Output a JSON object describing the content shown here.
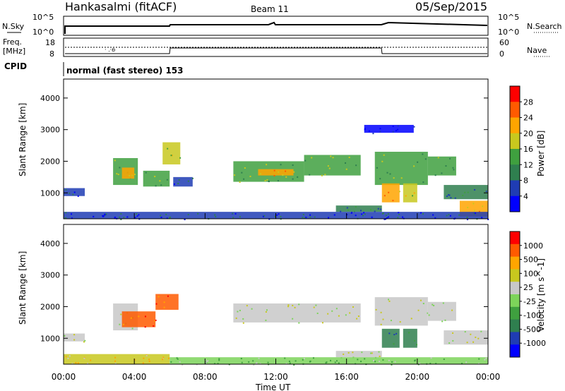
{
  "header": {
    "station": "Hankasalmi (fitACF)",
    "beam": "Beam 11",
    "date": "05/Sep/2015"
  },
  "nsky_panel": {
    "left_label": "N.Sky",
    "right_label": "N.Search",
    "left_ticks": [
      "10^5",
      "10^0"
    ],
    "right_ticks": [
      "10^5",
      "10^0"
    ]
  },
  "freq_panel": {
    "left_label_line1": "Freq.",
    "left_label_line2": "[MHz]",
    "right_label": "Nave",
    "left_ticks": [
      "18",
      "8"
    ],
    "right_ticks": [
      "60",
      "0"
    ]
  },
  "cpid": {
    "label": "CPID",
    "text": "normal (fast stereo) 153"
  },
  "colors": {
    "power": [
      "#0000ff",
      "#1f3cb4",
      "#2f7f4f",
      "#3fa03f",
      "#c8c81e",
      "#ffa500",
      "#ff5a00",
      "#ff0000"
    ],
    "velocity": [
      "#0000ff",
      "#1f3cb4",
      "#2f7f4f",
      "#3fa03f",
      "#7dd45a",
      "#c8c8c8",
      "#c8c81e",
      "#ffa500",
      "#ff5a00",
      "#ff0000"
    ]
  },
  "chart_data": [
    {
      "type": "heatmap",
      "name": "Power",
      "xlabel": "",
      "ylabel": "Slant Range [km]",
      "colorbar_label": "Power [dB]",
      "colorbar_ticks": [
        "28",
        "24",
        "20",
        "16",
        "12",
        "8",
        "4"
      ],
      "y_ticks": [
        "4000",
        "3000",
        "2000",
        "1000"
      ],
      "xlim": [
        0,
        24
      ],
      "ylim": [
        180,
        4600
      ],
      "echo_regions": [
        {
          "t0": 0.0,
          "t1": 1.2,
          "r0": 900,
          "r1": 1150,
          "level": 1
        },
        {
          "t0": 2.8,
          "t1": 4.2,
          "r0": 1250,
          "r1": 2100,
          "level": 3
        },
        {
          "t0": 3.3,
          "t1": 4.0,
          "r0": 1450,
          "r1": 1800,
          "level": 5
        },
        {
          "t0": 4.5,
          "t1": 6.0,
          "r0": 1200,
          "r1": 1700,
          "level": 3
        },
        {
          "t0": 5.6,
          "t1": 6.6,
          "r0": 1900,
          "r1": 2600,
          "level": 4
        },
        {
          "t0": 6.2,
          "t1": 7.3,
          "r0": 1200,
          "r1": 1500,
          "level": 1
        },
        {
          "t0": 9.6,
          "t1": 13.6,
          "r0": 1350,
          "r1": 2000,
          "level": 3
        },
        {
          "t0": 13.6,
          "t1": 16.8,
          "r0": 1550,
          "r1": 2200,
          "level": 3
        },
        {
          "t0": 11.0,
          "t1": 13.0,
          "r0": 1550,
          "r1": 1750,
          "level": 5
        },
        {
          "t0": 15.4,
          "t1": 18.0,
          "r0": 400,
          "r1": 600,
          "level": 2
        },
        {
          "t0": 17.6,
          "t1": 20.6,
          "r0": 1250,
          "r1": 2300,
          "level": 3
        },
        {
          "t0": 18.0,
          "t1": 19.0,
          "r0": 700,
          "r1": 1300,
          "level": 5
        },
        {
          "t0": 19.2,
          "t1": 20.0,
          "r0": 700,
          "r1": 1300,
          "level": 4
        },
        {
          "t0": 20.6,
          "t1": 22.2,
          "r0": 1550,
          "r1": 2150,
          "level": 3
        },
        {
          "t0": 17.0,
          "t1": 19.8,
          "r0": 2900,
          "r1": 3150,
          "level": 0
        },
        {
          "t0": 21.5,
          "t1": 24.0,
          "r0": 800,
          "r1": 1250,
          "level": 2
        },
        {
          "t0": 22.4,
          "t1": 24.0,
          "r0": 250,
          "r1": 750,
          "level": 5
        },
        {
          "t0": 0.0,
          "t1": 24.0,
          "r0": 180,
          "r1": 400,
          "level": 1
        }
      ]
    },
    {
      "type": "heatmap",
      "name": "Velocity",
      "xlabel": "Time UT",
      "ylabel": "Slant Range [km]",
      "colorbar_label": "Velocity [m s^-1]",
      "colorbar_ticks": [
        "1000",
        "500",
        "100",
        "25",
        "-25",
        "-100",
        "-500",
        "-1000"
      ],
      "y_ticks": [
        "4000",
        "3000",
        "2000",
        "1000"
      ],
      "x_ticks": [
        "00:00",
        "04:00",
        "08:00",
        "12:00",
        "16:00",
        "20:00",
        "00:00"
      ],
      "xlim": [
        0,
        24
      ],
      "ylim": [
        180,
        4600
      ],
      "echo_regions": [
        {
          "t0": 0.0,
          "t1": 1.2,
          "r0": 900,
          "r1": 1150,
          "level": 5
        },
        {
          "t0": 2.8,
          "t1": 4.2,
          "r0": 1250,
          "r1": 2100,
          "level": 5
        },
        {
          "t0": 3.3,
          "t1": 5.2,
          "r0": 1350,
          "r1": 1850,
          "level": 8
        },
        {
          "t0": 5.2,
          "t1": 6.5,
          "r0": 1900,
          "r1": 2400,
          "level": 8
        },
        {
          "t0": 9.6,
          "t1": 16.8,
          "r0": 1500,
          "r1": 2100,
          "level": 5
        },
        {
          "t0": 15.4,
          "t1": 18.0,
          "r0": 400,
          "r1": 600,
          "level": 5
        },
        {
          "t0": 17.6,
          "t1": 20.6,
          "r0": 1400,
          "r1": 2300,
          "level": 5
        },
        {
          "t0": 18.0,
          "t1": 19.0,
          "r0": 700,
          "r1": 1300,
          "level": 2
        },
        {
          "t0": 19.2,
          "t1": 20.0,
          "r0": 700,
          "r1": 1300,
          "level": 2
        },
        {
          "t0": 20.6,
          "t1": 22.2,
          "r0": 1550,
          "r1": 2150,
          "level": 5
        },
        {
          "t0": 21.5,
          "t1": 24.0,
          "r0": 800,
          "r1": 1250,
          "level": 5
        },
        {
          "t0": 0.0,
          "t1": 6.0,
          "r0": 180,
          "r1": 500,
          "level": 6
        },
        {
          "t0": 6.0,
          "t1": 24.0,
          "r0": 180,
          "r1": 400,
          "level": 4
        }
      ]
    }
  ]
}
